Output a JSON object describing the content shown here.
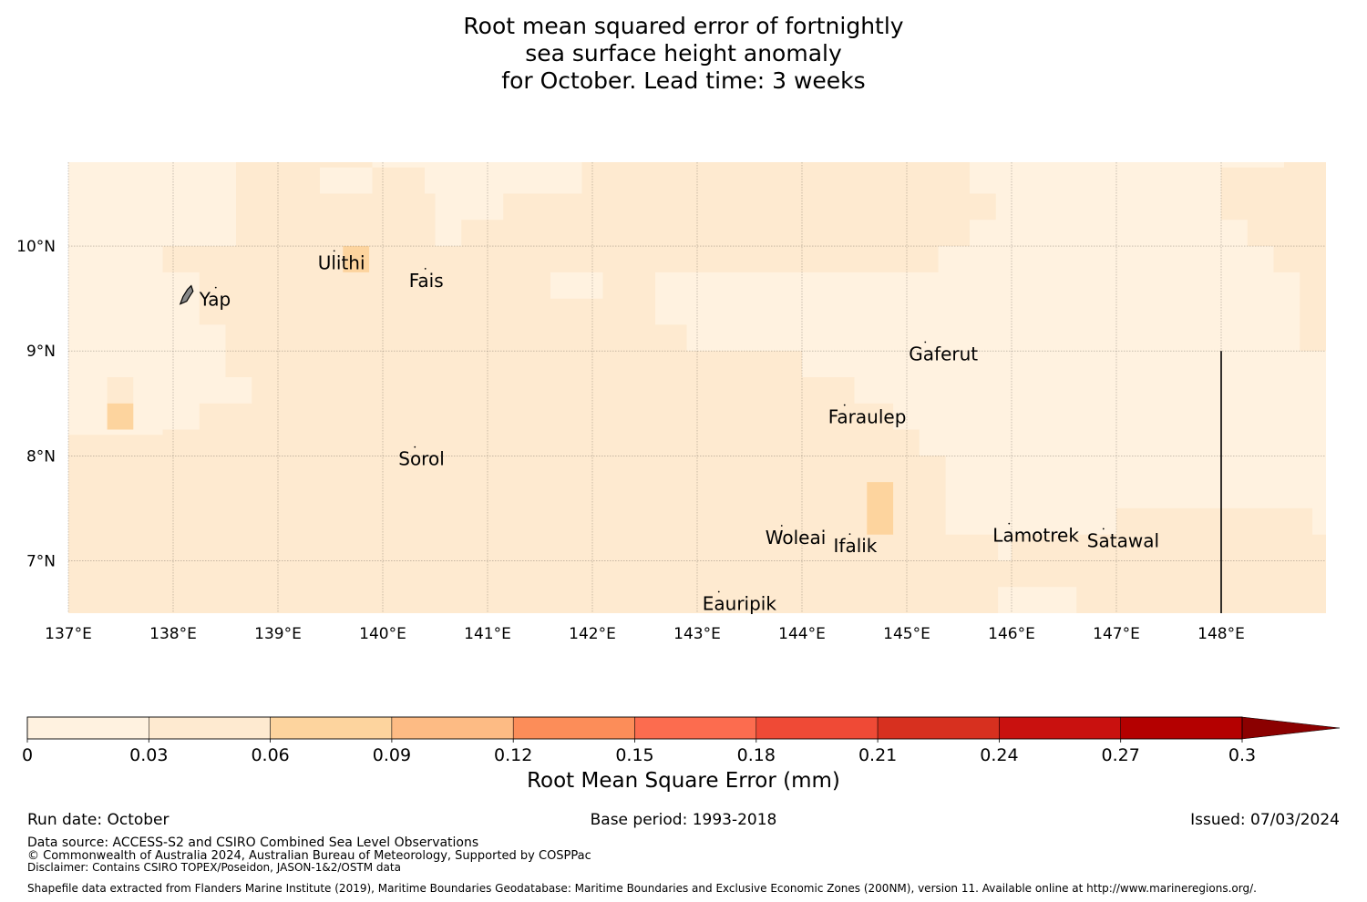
{
  "title": {
    "line1": "Root mean squared error of fortnightly",
    "line2": "sea surface height anomaly",
    "line3": "for October. Lead time: 3 weeks"
  },
  "map": {
    "lon_range": [
      137.0,
      149.0
    ],
    "lat_range": [
      6.5,
      10.8
    ],
    "lon_ticks": [
      137,
      138,
      139,
      140,
      141,
      142,
      143,
      144,
      145,
      146,
      147,
      148
    ],
    "lon_tick_labels": [
      "137°E",
      "138°E",
      "139°E",
      "140°E",
      "141°E",
      "142°E",
      "143°E",
      "144°E",
      "145°E",
      "146°E",
      "147°E",
      "148°E"
    ],
    "lat_ticks": [
      7,
      8,
      9,
      10
    ],
    "lat_tick_labels": [
      "7°N",
      "8°N",
      "9°N",
      "10°N"
    ],
    "places": [
      {
        "name": "Yap",
        "lon": 138.25,
        "lat": 9.5
      },
      {
        "name": "Ulithi",
        "lon": 139.38,
        "lat": 9.85
      },
      {
        "name": "Fais",
        "lon": 140.25,
        "lat": 9.68
      },
      {
        "name": "Gaferut",
        "lon": 145.02,
        "lat": 8.98
      },
      {
        "name": "Faraulep",
        "lon": 144.25,
        "lat": 8.38
      },
      {
        "name": "Sorol",
        "lon": 140.15,
        "lat": 7.98
      },
      {
        "name": "Woleai",
        "lon": 143.65,
        "lat": 7.23
      },
      {
        "name": "Ifalik",
        "lon": 144.3,
        "lat": 7.15
      },
      {
        "name": "Lamotrek",
        "lon": 145.82,
        "lat": 7.25
      },
      {
        "name": "Satawal",
        "lon": 146.72,
        "lat": 7.2
      },
      {
        "name": "Eauripik",
        "lon": 143.05,
        "lat": 6.6
      }
    ],
    "boundary_line": {
      "lon": 148.0,
      "lat_from": 6.5,
      "lat_to": 9.0
    },
    "zones": [
      {
        "level": 0,
        "poly": [
          [
            137,
            10.8
          ],
          [
            138.6,
            10.8
          ],
          [
            138.6,
            10.0
          ],
          [
            137,
            10.0
          ]
        ]
      },
      {
        "level": 0,
        "poly": [
          [
            137,
            10.0
          ],
          [
            137.9,
            10.0
          ],
          [
            137.9,
            8.2
          ],
          [
            137,
            8.2
          ]
        ]
      },
      {
        "level": 0,
        "poly": [
          [
            137.9,
            9.75
          ],
          [
            138.25,
            9.75
          ],
          [
            138.25,
            9.25
          ],
          [
            138.5,
            9.25
          ],
          [
            138.5,
            8.75
          ],
          [
            138.75,
            8.75
          ],
          [
            138.75,
            8.5
          ],
          [
            138.25,
            8.5
          ],
          [
            138.25,
            8.25
          ],
          [
            137.9,
            8.25
          ]
        ]
      },
      {
        "level": 0,
        "poly": [
          [
            139.4,
            10.75
          ],
          [
            139.9,
            10.75
          ],
          [
            139.9,
            10.5
          ],
          [
            139.4,
            10.5
          ]
        ]
      },
      {
        "level": 0,
        "poly": [
          [
            139.9,
            10.8
          ],
          [
            141.9,
            10.8
          ],
          [
            141.9,
            10.5
          ],
          [
            141.15,
            10.5
          ],
          [
            141.15,
            10.25
          ],
          [
            140.75,
            10.25
          ],
          [
            140.75,
            10.0
          ],
          [
            140.5,
            10.0
          ],
          [
            140.5,
            10.5
          ],
          [
            140.4,
            10.5
          ],
          [
            140.4,
            10.75
          ],
          [
            139.9,
            10.75
          ]
        ]
      },
      {
        "level": 0,
        "poly": [
          [
            141.6,
            9.75
          ],
          [
            142.1,
            9.75
          ],
          [
            142.1,
            9.5
          ],
          [
            141.6,
            9.5
          ]
        ]
      },
      {
        "level": 0,
        "poly": [
          [
            142.6,
            9.75
          ],
          [
            145.3,
            9.75
          ],
          [
            145.3,
            10.0
          ],
          [
            145.6,
            10.0
          ],
          [
            145.6,
            10.25
          ],
          [
            145.85,
            10.25
          ],
          [
            145.85,
            10.5
          ],
          [
            145.6,
            10.5
          ],
          [
            145.6,
            10.8
          ],
          [
            148.6,
            10.8
          ],
          [
            148.6,
            10.75
          ],
          [
            148.0,
            10.75
          ],
          [
            148.0,
            10.25
          ],
          [
            148.25,
            10.25
          ],
          [
            148.25,
            10.0
          ],
          [
            148.5,
            10.0
          ],
          [
            148.5,
            9.75
          ],
          [
            148.75,
            9.75
          ],
          [
            148.75,
            9.0
          ],
          [
            149.0,
            9.0
          ],
          [
            149.0,
            7.25
          ],
          [
            148.87,
            7.25
          ],
          [
            148.87,
            7.5
          ],
          [
            148.37,
            7.5
          ],
          [
            148.37,
            7.5
          ],
          [
            147.37,
            7.5
          ],
          [
            147.0,
            7.5
          ],
          [
            147.0,
            7.25
          ],
          [
            146.0,
            7.25
          ],
          [
            146.0,
            7.0
          ],
          [
            145.87,
            7.0
          ],
          [
            145.87,
            7.25
          ],
          [
            145.37,
            7.25
          ],
          [
            145.37,
            8.0
          ],
          [
            145.12,
            8.0
          ],
          [
            145.12,
            8.25
          ],
          [
            144.87,
            8.25
          ],
          [
            144.87,
            8.5
          ],
          [
            144.5,
            8.5
          ],
          [
            144.5,
            8.75
          ],
          [
            144.0,
            8.75
          ],
          [
            144.0,
            9.0
          ],
          [
            143.5,
            9.0
          ],
          [
            143.5,
            9.0
          ],
          [
            142.9,
            9.0
          ],
          [
            142.9,
            9.25
          ],
          [
            142.6,
            9.25
          ]
        ]
      },
      {
        "level": 0,
        "poly": [
          [
            145.87,
            6.75
          ],
          [
            146.62,
            6.75
          ],
          [
            146.62,
            6.5
          ],
          [
            145.87,
            6.5
          ]
        ]
      },
      {
        "level": 1,
        "poly": [
          [
            137.37,
            8.75
          ],
          [
            137.62,
            8.75
          ],
          [
            137.62,
            8.5
          ],
          [
            137.37,
            8.5
          ]
        ]
      },
      {
        "level": 2,
        "poly": [
          [
            137.37,
            8.5
          ],
          [
            137.62,
            8.5
          ],
          [
            137.62,
            8.25
          ],
          [
            137.37,
            8.25
          ]
        ]
      },
      {
        "level": 2,
        "poly": [
          [
            139.62,
            10.0
          ],
          [
            139.87,
            10.0
          ],
          [
            139.87,
            9.75
          ],
          [
            139.62,
            9.75
          ]
        ]
      },
      {
        "level": 2,
        "poly": [
          [
            144.62,
            7.75
          ],
          [
            144.87,
            7.75
          ],
          [
            144.87,
            7.25
          ],
          [
            144.62,
            7.25
          ]
        ]
      }
    ]
  },
  "colorbar": {
    "levels": [
      0,
      0.03,
      0.06,
      0.09,
      0.12,
      0.15,
      0.18,
      0.21,
      0.24,
      0.27,
      0.3
    ],
    "tick_labels": [
      "0",
      "0.03",
      "0.06",
      "0.09",
      "0.12",
      "0.15",
      "0.18",
      "0.21",
      "0.24",
      "0.27",
      "0.3"
    ],
    "colors": [
      "#fff2e0",
      "#feead0",
      "#fdd49e",
      "#fdbb84",
      "#fc8d59",
      "#fc6c4f",
      "#ef4a36",
      "#d7301f",
      "#c9110f",
      "#b40000",
      "#8b0000"
    ],
    "label": "Root Mean Square Error (mm)"
  },
  "footer": {
    "run_date": "Run date: October",
    "base_period": "Base period: 1993-2018",
    "issued": "Issued: 07/03/2024",
    "data_source": "Data source: ACCESS-S2 and CSIRO Combined Sea Level Observations",
    "copyright": "© Commonwealth of Australia 2024, Australian Bureau of Meteorology, Supported by COSPPac",
    "disclaimer": "Disclaimer: Contains CSIRO TOPEX/Poseidon, JASON-1&2/OSTM data",
    "shapefile": "Shapefile data extracted from Flanders Marine Institute (2019), Maritime Boundaries Geodatabase: Maritime Boundaries and Exclusive Economic Zones (200NM), version 11. Available online at http://www.marineregions.org/."
  }
}
